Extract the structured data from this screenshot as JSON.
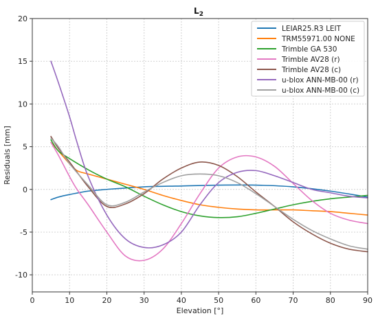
{
  "chart_data": {
    "type": "line",
    "title": "L",
    "title_subscript": "2",
    "xlabel": "Elevation [°]",
    "ylabel": "Residuals [mm]",
    "xlim": [
      0,
      90
    ],
    "ylim": [
      -12,
      20
    ],
    "xticks": [
      0,
      10,
      20,
      30,
      40,
      50,
      60,
      70,
      80,
      90
    ],
    "yticks": [
      -10,
      -5,
      0,
      5,
      10,
      15,
      20
    ],
    "grid": true,
    "legend_position": "top-right",
    "series": [
      {
        "name": "LEIAR25.R3 LEIT",
        "color": "#1f77b4",
        "x": [
          5,
          7,
          10,
          15,
          20,
          30,
          40,
          50,
          60,
          70,
          80,
          90
        ],
        "y": [
          -1.2,
          -0.9,
          -0.6,
          -0.2,
          0.0,
          0.3,
          0.4,
          0.5,
          0.5,
          0.3,
          -0.2,
          -0.9
        ]
      },
      {
        "name": "TRM55971.00 NONE",
        "color": "#ff7f0e",
        "x": [
          5,
          7,
          10,
          12,
          15,
          20,
          25,
          30,
          35,
          40,
          45,
          50,
          55,
          60,
          65,
          70,
          75,
          80,
          85,
          90
        ],
        "y": [
          5.5,
          4.5,
          3.0,
          2.2,
          1.8,
          1.2,
          0.6,
          0.0,
          -0.7,
          -1.3,
          -1.8,
          -2.1,
          -2.3,
          -2.4,
          -2.4,
          -2.4,
          -2.5,
          -2.6,
          -2.8,
          -3.0
        ]
      },
      {
        "name": "Trimble GA 530",
        "color": "#2ca02c",
        "x": [
          5,
          7,
          10,
          15,
          20,
          25,
          30,
          35,
          40,
          45,
          50,
          55,
          60,
          65,
          70,
          75,
          80,
          85,
          90
        ],
        "y": [
          5.8,
          4.5,
          3.6,
          2.3,
          1.2,
          0.3,
          -0.8,
          -1.8,
          -2.6,
          -3.1,
          -3.3,
          -3.2,
          -2.8,
          -2.3,
          -1.8,
          -1.4,
          -1.1,
          -0.9,
          -0.7
        ]
      },
      {
        "name": "Trimble AV28 (r)",
        "color": "#e377c2",
        "x": [
          5,
          7,
          10,
          12,
          15,
          20,
          25,
          30,
          35,
          40,
          45,
          50,
          55,
          60,
          65,
          70,
          75,
          80,
          85,
          90
        ],
        "y": [
          5.5,
          4.0,
          1.5,
          0.0,
          -1.8,
          -5.0,
          -7.8,
          -8.3,
          -7.0,
          -4.0,
          -0.5,
          2.5,
          3.8,
          3.8,
          2.7,
          0.7,
          -1.3,
          -2.8,
          -3.6,
          -4.0
        ]
      },
      {
        "name": "Trimble AV28 (c)",
        "color": "#8c564b",
        "x": [
          5,
          7,
          10,
          15,
          20,
          25,
          30,
          35,
          40,
          45,
          50,
          55,
          60,
          65,
          70,
          75,
          80,
          85,
          90
        ],
        "y": [
          6.2,
          4.8,
          3.2,
          0.3,
          -2.0,
          -1.7,
          -0.5,
          1.2,
          2.5,
          3.2,
          2.8,
          1.5,
          -0.3,
          -2.0,
          -3.8,
          -5.2,
          -6.3,
          -7.0,
          -7.3
        ]
      },
      {
        "name": "u-blox ANN-MB-00 (r)",
        "color": "#9467bd",
        "x": [
          5,
          7,
          10,
          12,
          15,
          20,
          25,
          30,
          35,
          40,
          45,
          50,
          55,
          60,
          65,
          70,
          75,
          80,
          85,
          90
        ],
        "y": [
          15.0,
          12.5,
          8.5,
          5.5,
          1.5,
          -3.0,
          -5.8,
          -6.8,
          -6.5,
          -5.0,
          -1.8,
          0.8,
          2.0,
          2.2,
          1.6,
          0.8,
          0.0,
          -0.4,
          -0.8,
          -1.0
        ]
      },
      {
        "name": "u-blox ANN-MB-00 (c)",
        "color": "#a0a0a0",
        "x": [
          5,
          7,
          10,
          15,
          20,
          25,
          30,
          35,
          40,
          45,
          50,
          55,
          60,
          65,
          70,
          75,
          80,
          85,
          90
        ],
        "y": [
          6.0,
          5.0,
          3.0,
          0.5,
          -1.8,
          -1.5,
          -0.3,
          0.8,
          1.6,
          1.8,
          1.6,
          0.8,
          -0.5,
          -2.0,
          -3.5,
          -4.8,
          -5.8,
          -6.6,
          -7.0
        ]
      }
    ]
  }
}
